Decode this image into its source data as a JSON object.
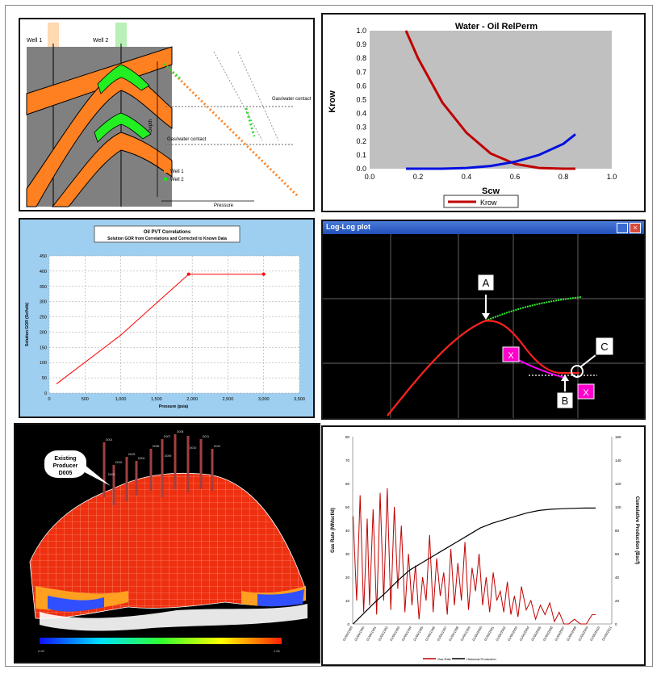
{
  "panel1": {
    "wells": [
      "Well 1",
      "Well 2"
    ],
    "ylabel": "Depth",
    "xlabel": "Pressure",
    "annotations": [
      "Gas/water contact",
      "Gas/water contact"
    ],
    "legend": [
      "Well 1",
      "Well 2"
    ]
  },
  "panel2": {
    "chart_data": {
      "type": "line",
      "title": "Water - Oil RelPerm",
      "xlabel": "Scw",
      "ylabel": "Krow",
      "xlim": [
        0.0,
        1.0
      ],
      "ylim": [
        0.0,
        1.0
      ],
      "x_ticks": [
        "0.0",
        "0.2",
        "0.4",
        "0.6",
        "0.8",
        "1.0"
      ],
      "y_ticks": [
        "0.0",
        "0.1",
        "0.2",
        "0.3",
        "0.4",
        "0.5",
        "0.6",
        "0.7",
        "0.8",
        "0.9",
        "1.0"
      ],
      "legend": "Krow",
      "series": [
        {
          "name": "Krow",
          "color": "#c00000",
          "x": [
            0.15,
            0.2,
            0.3,
            0.4,
            0.5,
            0.6,
            0.7,
            0.8,
            0.85
          ],
          "y": [
            1.0,
            0.8,
            0.48,
            0.26,
            0.11,
            0.035,
            0.005,
            0.0,
            0.0
          ]
        },
        {
          "color": "#0010e0",
          "x": [
            0.15,
            0.3,
            0.4,
            0.5,
            0.6,
            0.7,
            0.8,
            0.85
          ],
          "y": [
            0.0,
            0.0,
            0.005,
            0.02,
            0.05,
            0.1,
            0.18,
            0.25
          ]
        }
      ]
    }
  },
  "panel3": {
    "chart_data": {
      "type": "line",
      "title": "Oil PVT Correlations",
      "subtitle": "Solution GOR from Correlations and Corrected to Known Data",
      "xlabel": "Pressure (psia)",
      "ylabel": "Solution GOR (Scf/stb)",
      "xlim": [
        0,
        3500
      ],
      "ylim": [
        0,
        450
      ],
      "x_ticks": [
        "0",
        "500",
        "1,000",
        "1,500",
        "2,000",
        "2,500",
        "3,000",
        "3,500"
      ],
      "y_ticks": [
        "0",
        "50",
        "100",
        "150",
        "200",
        "250",
        "300",
        "350",
        "400",
        "450"
      ],
      "series": [
        {
          "color": "#ff0000",
          "x": [
            100,
            1000,
            1950,
            3000
          ],
          "y": [
            30,
            190,
            390,
            390
          ],
          "markers": [
            1950,
            3000
          ]
        }
      ]
    }
  },
  "panel4": {
    "window_title": "Log-Log plot",
    "labels": [
      "A",
      "B",
      "C",
      "X",
      "X"
    ]
  },
  "panel5": {
    "callout": "Existing Producer D005",
    "well_labels": [
      "D001",
      "D002",
      "D003",
      "D004",
      "D005",
      "D006",
      "D007",
      "D008",
      "D009",
      "D010",
      "D011",
      "D012"
    ],
    "scale_min": "0.00",
    "scale_max": "1.00"
  },
  "panel6": {
    "chart_data": {
      "type": "line",
      "ylabel_left": "Gas Rate (MMscf/d)",
      "ylabel_right": "Cumulative Production (Bscf)",
      "ylim_left": [
        0,
        80
      ],
      "ylim_right": [
        0,
        160
      ],
      "left_ticks": [
        "0",
        "10",
        "20",
        "30",
        "40",
        "50",
        "60",
        "70",
        "80"
      ],
      "right_ticks": [
        "0",
        "20",
        "40",
        "60",
        "80",
        "100",
        "120",
        "140",
        "160"
      ],
      "x_ticks": [
        "01/09/1989",
        "01/09/1990",
        "01/09/1991",
        "01/09/1992",
        "01/09/1993",
        "01/09/1994",
        "01/09/1995",
        "01/09/1996",
        "01/09/1997",
        "01/09/1998",
        "01/09/1999",
        "01/09/2000",
        "01/09/2001",
        "01/09/2002",
        "01/09/2003",
        "01/09/2004",
        "01/09/2005",
        "01/09/2006",
        "01/09/2007",
        "01/09/2008",
        "01/09/2009",
        "01/09/2010",
        "01/09/2011"
      ],
      "series": [
        {
          "name": "Gas Rate",
          "color": "#c00000",
          "x": [
            1989.7,
            1990.0,
            1990.3,
            1990.6,
            1990.9,
            1991.1,
            1991.4,
            1991.7,
            1992.0,
            1992.3,
            1992.6,
            1992.9,
            1993.2,
            1993.5,
            1993.8,
            1994.1,
            1994.4,
            1994.7,
            1995.0,
            1995.3,
            1995.6,
            1995.9,
            1996.2,
            1996.5,
            1996.8,
            1997.1,
            1997.4,
            1997.7,
            1998.0,
            1998.3,
            1998.6,
            1998.9,
            1999.2,
            1999.5,
            1999.8,
            2000.1,
            2000.4,
            2000.7,
            2001.0,
            2001.3,
            2001.6,
            2001.9,
            2002.2,
            2002.5,
            2002.8,
            2003.1,
            2003.4,
            2003.7,
            2004.0,
            2004.4,
            2004.8,
            2005.2,
            2005.6,
            2006.0,
            2006.4,
            2006.8,
            2007.2,
            2007.6,
            2008.0,
            2008.5,
            2009.0,
            2009.5,
            2010.0,
            2010.3
          ],
          "y": [
            46,
            10,
            55,
            5,
            45,
            8,
            49,
            4,
            56,
            10,
            58,
            6,
            50,
            15,
            42,
            5,
            30,
            8,
            25,
            2,
            20,
            10,
            38,
            5,
            28,
            12,
            22,
            4,
            32,
            8,
            26,
            10,
            35,
            6,
            24,
            14,
            30,
            8,
            20,
            5,
            22,
            10,
            14,
            5,
            18,
            4,
            12,
            3,
            16,
            6,
            10,
            2,
            8,
            4,
            9,
            1,
            5,
            0,
            0,
            2,
            0,
            0,
            4,
            4
          ]
        },
        {
          "name": "Historical Production",
          "color": "#000000",
          "x": [
            1989.7,
            1990.5,
            1991.5,
            1992.5,
            1993.5,
            1994.5,
            1995.5,
            1996.5,
            1997.5,
            1998.5,
            1999.5,
            2000.5,
            2001.5,
            2002.5,
            2003.5,
            2004.5,
            2005.5,
            2006.5,
            2007.5,
            2008.5,
            2009.5,
            2010.3
          ],
          "y": [
            0,
            8,
            18,
            27,
            37,
            46,
            52,
            58,
            64,
            70,
            76,
            82,
            86,
            89,
            92,
            95,
            97,
            98,
            98.5,
            98.8,
            99,
            99
          ]
        }
      ],
      "legend": [
        "Gas Rate",
        "Historical Production"
      ]
    }
  },
  "colors": {
    "plot_bg": "#c0c0c0",
    "pvt_bg": "#9fcff0",
    "loglog_bg": "#000000"
  }
}
